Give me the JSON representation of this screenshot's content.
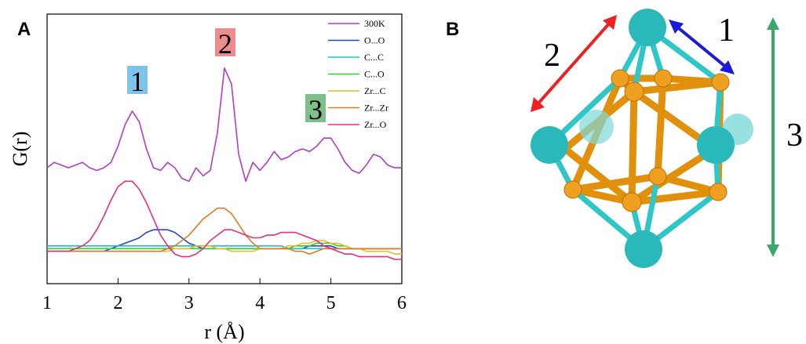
{
  "chart_data": {
    "type": "line",
    "panel_label": "A",
    "x_label": "r (Å)",
    "y_label": "G(r)",
    "xlim": [
      1,
      6
    ],
    "xticks": [
      1,
      2,
      3,
      4,
      5,
      6
    ],
    "ylim": [
      0,
      10
    ],
    "annotations": [
      {
        "text": "1",
        "color": "#7cc4ea"
      },
      {
        "text": "2",
        "color": "#ec8c8c"
      },
      {
        "text": "3",
        "color": "#7fbf8a"
      }
    ],
    "x": [
      1.0,
      1.1,
      1.2,
      1.3,
      1.4,
      1.5,
      1.6,
      1.7,
      1.8,
      1.9,
      2.0,
      2.1,
      2.2,
      2.3,
      2.4,
      2.5,
      2.6,
      2.7,
      2.8,
      2.9,
      3.0,
      3.1,
      3.2,
      3.3,
      3.4,
      3.5,
      3.6,
      3.7,
      3.8,
      3.9,
      4.0,
      4.1,
      4.2,
      4.3,
      4.4,
      4.5,
      4.6,
      4.7,
      4.8,
      4.9,
      5.0,
      5.1,
      5.2,
      5.3,
      5.4,
      5.5,
      5.6,
      5.7,
      5.8,
      5.9,
      6.0
    ],
    "series": [
      {
        "name": "300K",
        "color": "#b03cc8",
        "values": [
          4.3,
          4.5,
          4.4,
          4.3,
          4.4,
          4.5,
          4.3,
          4.2,
          4.3,
          4.5,
          5.1,
          5.9,
          6.4,
          6.0,
          5.0,
          4.3,
          4.2,
          4.5,
          4.3,
          3.9,
          3.8,
          4.3,
          4.0,
          4.2,
          5.6,
          8.0,
          7.4,
          4.8,
          3.8,
          4.5,
          4.2,
          4.5,
          4.9,
          4.6,
          4.7,
          4.9,
          5.0,
          4.9,
          5.1,
          5.4,
          5.4,
          5.0,
          4.5,
          4.2,
          4.1,
          4.4,
          4.8,
          4.7,
          4.4,
          4.3,
          4.3
        ]
      },
      {
        "name": "O...O",
        "color": "#2244dd",
        "values": [
          1.2,
          1.2,
          1.2,
          1.2,
          1.2,
          1.2,
          1.2,
          1.2,
          1.2,
          1.3,
          1.4,
          1.5,
          1.6,
          1.7,
          1.9,
          2.0,
          2.0,
          2.0,
          1.9,
          1.7,
          1.5,
          1.4,
          1.3,
          1.3,
          1.3,
          1.3,
          1.3,
          1.3,
          1.3,
          1.3,
          1.3,
          1.3,
          1.3,
          1.3,
          1.3,
          1.3,
          1.3,
          1.4,
          1.4,
          1.4,
          1.4,
          1.3,
          1.3,
          1.3,
          1.3,
          1.3,
          1.3,
          1.3,
          1.3,
          1.3,
          1.3
        ]
      },
      {
        "name": "C...C",
        "color": "#20c0c0",
        "values": [
          1.4,
          1.4,
          1.4,
          1.4,
          1.4,
          1.4,
          1.4,
          1.4,
          1.4,
          1.4,
          1.4,
          1.4,
          1.4,
          1.4,
          1.4,
          1.4,
          1.4,
          1.4,
          1.4,
          1.4,
          1.4,
          1.4,
          1.4,
          1.4,
          1.4,
          1.4,
          1.4,
          1.4,
          1.4,
          1.4,
          1.4,
          1.4,
          1.4,
          1.4,
          1.3,
          1.3,
          1.3,
          1.3,
          1.3,
          1.3,
          1.3,
          1.3,
          1.3,
          1.3,
          1.3,
          1.3,
          1.3,
          1.3,
          1.3,
          1.3,
          1.3
        ]
      },
      {
        "name": "C...O",
        "color": "#33cc33",
        "values": [
          1.3,
          1.3,
          1.3,
          1.3,
          1.3,
          1.3,
          1.3,
          1.3,
          1.3,
          1.3,
          1.3,
          1.3,
          1.3,
          1.3,
          1.3,
          1.3,
          1.3,
          1.3,
          1.3,
          1.3,
          1.3,
          1.3,
          1.3,
          1.3,
          1.3,
          1.3,
          1.3,
          1.3,
          1.3,
          1.3,
          1.3,
          1.3,
          1.3,
          1.3,
          1.3,
          1.4,
          1.4,
          1.4,
          1.5,
          1.5,
          1.5,
          1.4,
          1.4,
          1.3,
          1.3,
          1.3,
          1.3,
          1.3,
          1.3,
          1.3,
          1.3
        ]
      },
      {
        "name": "Zr...C",
        "color": "#e0c020",
        "values": [
          1.2,
          1.2,
          1.2,
          1.2,
          1.2,
          1.2,
          1.2,
          1.2,
          1.2,
          1.2,
          1.2,
          1.2,
          1.2,
          1.2,
          1.2,
          1.2,
          1.2,
          1.2,
          1.3,
          1.3,
          1.3,
          1.4,
          1.4,
          1.4,
          1.3,
          1.3,
          1.2,
          1.2,
          1.2,
          1.2,
          1.3,
          1.3,
          1.3,
          1.3,
          1.4,
          1.4,
          1.5,
          1.5,
          1.6,
          1.6,
          1.5,
          1.5,
          1.4,
          1.3,
          1.3,
          1.2,
          1.2,
          1.2,
          1.2,
          1.1,
          1.1
        ]
      },
      {
        "name": "Zr...Zr",
        "color": "#e07a20",
        "values": [
          1.2,
          1.2,
          1.2,
          1.2,
          1.2,
          1.2,
          1.2,
          1.2,
          1.2,
          1.2,
          1.2,
          1.2,
          1.2,
          1.2,
          1.2,
          1.2,
          1.2,
          1.3,
          1.4,
          1.6,
          1.8,
          2.1,
          2.4,
          2.6,
          2.8,
          2.8,
          2.6,
          2.2,
          1.8,
          1.5,
          1.3,
          1.3,
          1.3,
          1.3,
          1.3,
          1.2,
          1.2,
          1.1,
          1.2,
          1.3,
          1.3,
          1.3,
          1.3,
          1.3,
          1.3,
          1.3,
          1.3,
          1.3,
          1.3,
          1.3,
          1.3
        ]
      },
      {
        "name": "Zr...O",
        "color": "#e03080",
        "values": [
          1.2,
          1.2,
          1.2,
          1.2,
          1.3,
          1.4,
          1.6,
          2.0,
          2.5,
          3.1,
          3.6,
          3.8,
          3.8,
          3.5,
          3.0,
          2.4,
          1.8,
          1.4,
          1.1,
          1.0,
          1.0,
          1.1,
          1.3,
          1.6,
          1.8,
          2.0,
          2.0,
          1.9,
          1.8,
          1.7,
          1.7,
          1.8,
          1.8,
          1.9,
          1.9,
          1.9,
          1.8,
          1.7,
          1.6,
          1.4,
          1.3,
          1.2,
          1.1,
          1.1,
          1.0,
          1.0,
          1.0,
          1.0,
          1.0,
          0.9,
          0.9
        ]
      }
    ]
  },
  "diagram": {
    "panel_label": "B",
    "labels": [
      "1",
      "2",
      "3"
    ]
  }
}
